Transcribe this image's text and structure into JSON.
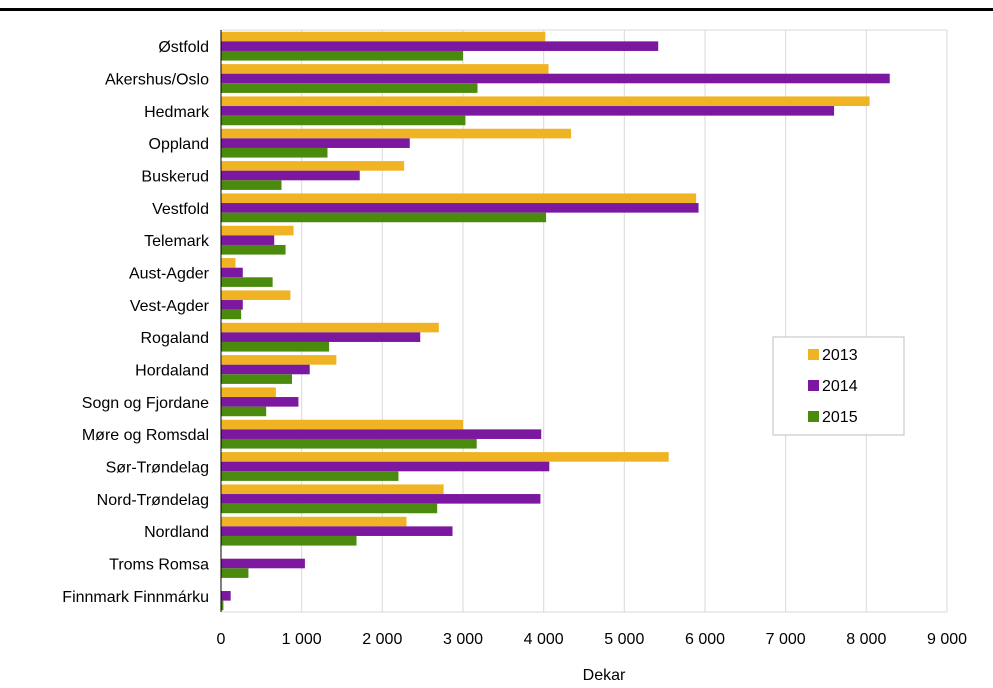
{
  "chart_data": {
    "type": "bar",
    "orientation": "horizontal",
    "categories": [
      "Østfold",
      "Akershus/Oslo",
      "Hedmark",
      "Oppland",
      "Buskerud",
      "Vestfold",
      "Telemark",
      "Aust-Agder",
      "Vest-Agder",
      "Rogaland",
      "Hordaland",
      "Sogn og Fjordane",
      "Møre og Romsdal",
      "Sør-Trøndelag",
      "Nord-Trøndelag",
      "Nordland",
      "Troms Romsa",
      "Finnmark Finnmárku"
    ],
    "series": [
      {
        "name": "2013",
        "color": "#f0b323",
        "values": [
          4020,
          4060,
          8040,
          4340,
          2270,
          5890,
          900,
          180,
          860,
          2700,
          1430,
          680,
          3000,
          5550,
          2760,
          2300,
          0,
          0
        ]
      },
      {
        "name": "2014",
        "color": "#7b189f",
        "values": [
          5420,
          8290,
          7600,
          2340,
          1720,
          5920,
          660,
          270,
          270,
          2470,
          1100,
          960,
          3970,
          4070,
          3960,
          2870,
          1040,
          120
        ]
      },
      {
        "name": "2015",
        "color": "#4a8a0c",
        "values": [
          3000,
          3180,
          3030,
          1320,
          750,
          4030,
          800,
          640,
          250,
          1340,
          880,
          560,
          3170,
          2200,
          2680,
          1680,
          340,
          30
        ]
      }
    ],
    "xlim": [
      0,
      9000
    ],
    "xticks": [
      0,
      1000,
      2000,
      3000,
      4000,
      5000,
      6000,
      7000,
      8000,
      9000
    ],
    "xtick_labels": [
      "0",
      "1 000",
      "2 000",
      "3 000",
      "4 000",
      "5 000",
      "6 000",
      "7 000",
      "8 000",
      "9 000"
    ],
    "xlabel": "Dekar",
    "grid": true,
    "legend_position": "right"
  }
}
